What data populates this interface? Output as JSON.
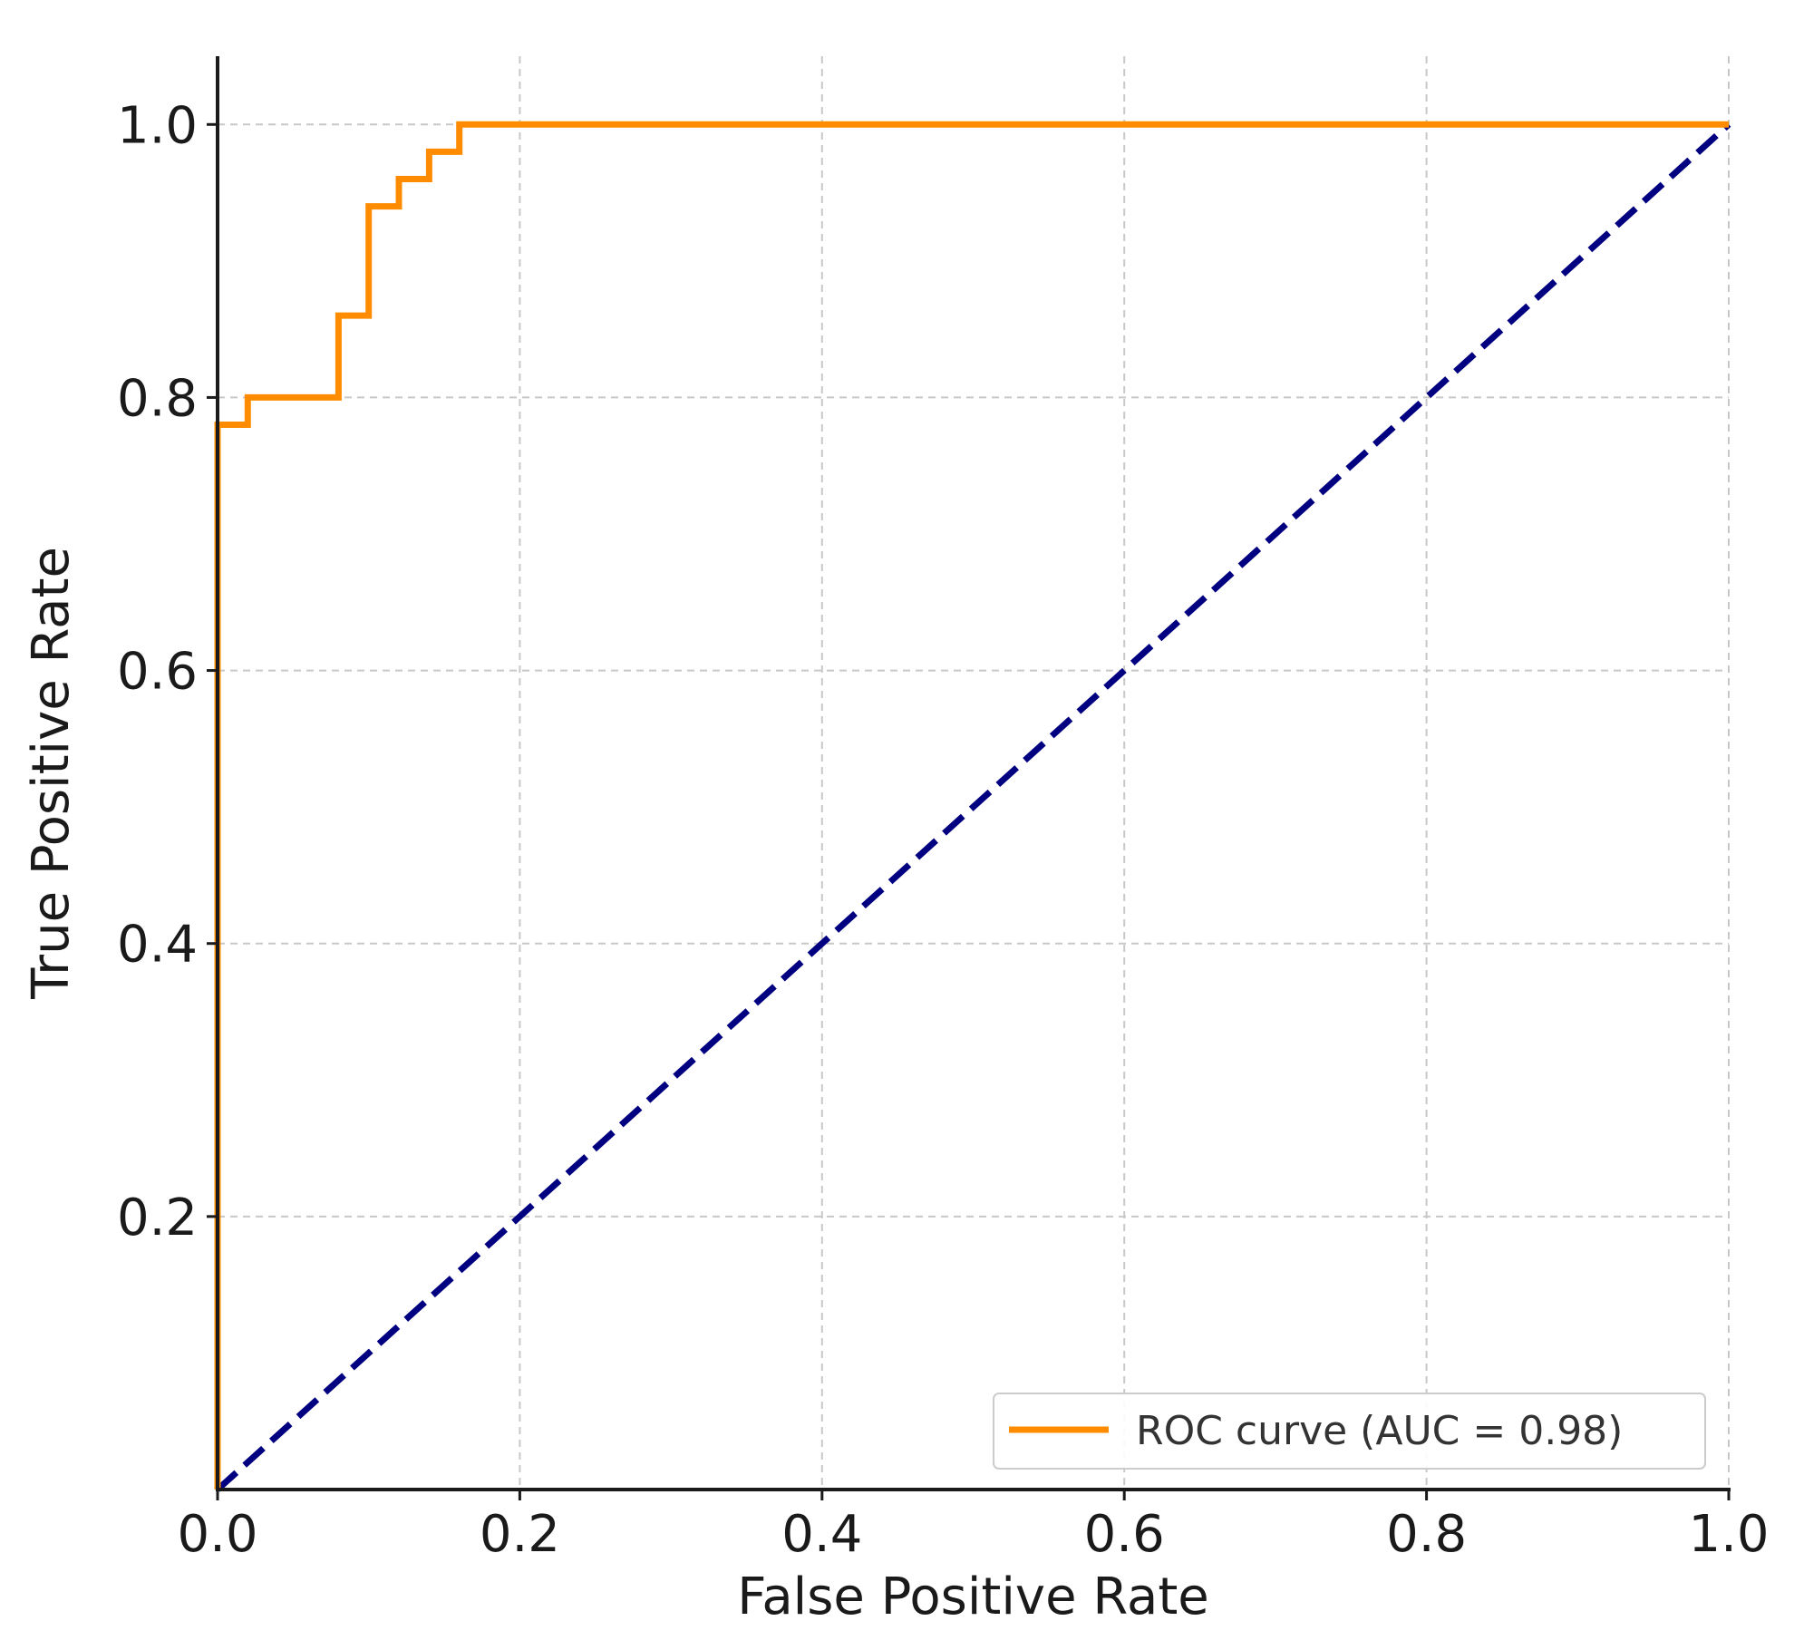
{
  "chart_data": {
    "type": "line",
    "title": "",
    "xlabel": "False Positive Rate",
    "ylabel": "True Positive Rate",
    "xlim": [
      0.0,
      1.0
    ],
    "ylim": [
      0.0,
      1.05
    ],
    "x_ticks": [
      "0.0",
      "0.2",
      "0.4",
      "0.6",
      "0.8",
      "1.0"
    ],
    "y_ticks": [
      "0.2",
      "0.4",
      "0.6",
      "0.8",
      "1.0"
    ],
    "x_tick_values": [
      0.0,
      0.2,
      0.4,
      0.6,
      0.8,
      1.0
    ],
    "y_tick_values": [
      0.2,
      0.4,
      0.6,
      0.8,
      1.0
    ],
    "grid": true,
    "legend_position": "lower-right",
    "series": [
      {
        "name": "ROC curve (AUC = 0.98)",
        "color": "#ff8c00",
        "style": "solid",
        "x": [
          0.0,
          0.0,
          0.02,
          0.02,
          0.08,
          0.08,
          0.1,
          0.1,
          0.12,
          0.12,
          0.14,
          0.14,
          0.16,
          0.16,
          1.0
        ],
        "y": [
          0.0,
          0.78,
          0.78,
          0.8,
          0.8,
          0.86,
          0.86,
          0.94,
          0.94,
          0.96,
          0.96,
          0.98,
          0.98,
          1.0,
          1.0
        ]
      },
      {
        "color": "#000080",
        "style": "dashed",
        "x": [
          0.0,
          1.0
        ],
        "y": [
          0.0,
          1.0
        ]
      }
    ]
  }
}
